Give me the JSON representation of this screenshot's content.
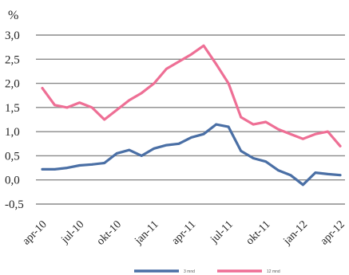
{
  "chart_data": {
    "type": "line",
    "ylabel": "%",
    "ylim": [
      -0.5,
      3.0
    ],
    "yticks": [
      "-0,5",
      "0,0",
      "0,5",
      "1,0",
      "1,5",
      "2,0",
      "2,5",
      "3,0"
    ],
    "ytick_values": [
      -0.5,
      0.0,
      0.5,
      1.0,
      1.5,
      2.0,
      2.5,
      3.0
    ],
    "xticks": [
      "apr-10",
      "jul-10",
      "okt-10",
      "jan-11",
      "apr-11",
      "jul-11",
      "okt-11",
      "jan-12",
      "apr-12"
    ],
    "x": [
      "apr-10",
      "mai-10",
      "jun-10",
      "jul-10",
      "aug-10",
      "sep-10",
      "okt-10",
      "nov-10",
      "des-10",
      "jan-11",
      "feb-11",
      "mar-11",
      "apr-11",
      "mai-11",
      "jun-11",
      "jul-11",
      "aug-11",
      "sep-11",
      "okt-11",
      "nov-11",
      "des-11",
      "jan-12",
      "feb-12",
      "mar-12",
      "apr-12"
    ],
    "grid": true,
    "legend_position": "bottom",
    "series": [
      {
        "name": "3 mnd",
        "color": "#4a6fa5",
        "values": [
          0.22,
          0.22,
          0.25,
          0.3,
          0.32,
          0.35,
          0.55,
          0.62,
          0.5,
          0.65,
          0.72,
          0.75,
          0.88,
          0.95,
          1.15,
          1.1,
          0.6,
          0.45,
          0.38,
          0.2,
          0.1,
          -0.1,
          0.15,
          0.12,
          0.1
        ]
      },
      {
        "name": "12 mnd",
        "color": "#ee6f95",
        "values": [
          1.9,
          1.55,
          1.5,
          1.6,
          1.5,
          1.25,
          1.45,
          1.65,
          1.8,
          2.0,
          2.3,
          2.45,
          2.6,
          2.78,
          2.4,
          2.0,
          1.3,
          1.15,
          1.2,
          1.05,
          0.95,
          0.85,
          0.95,
          1.0,
          0.7
        ]
      }
    ]
  }
}
